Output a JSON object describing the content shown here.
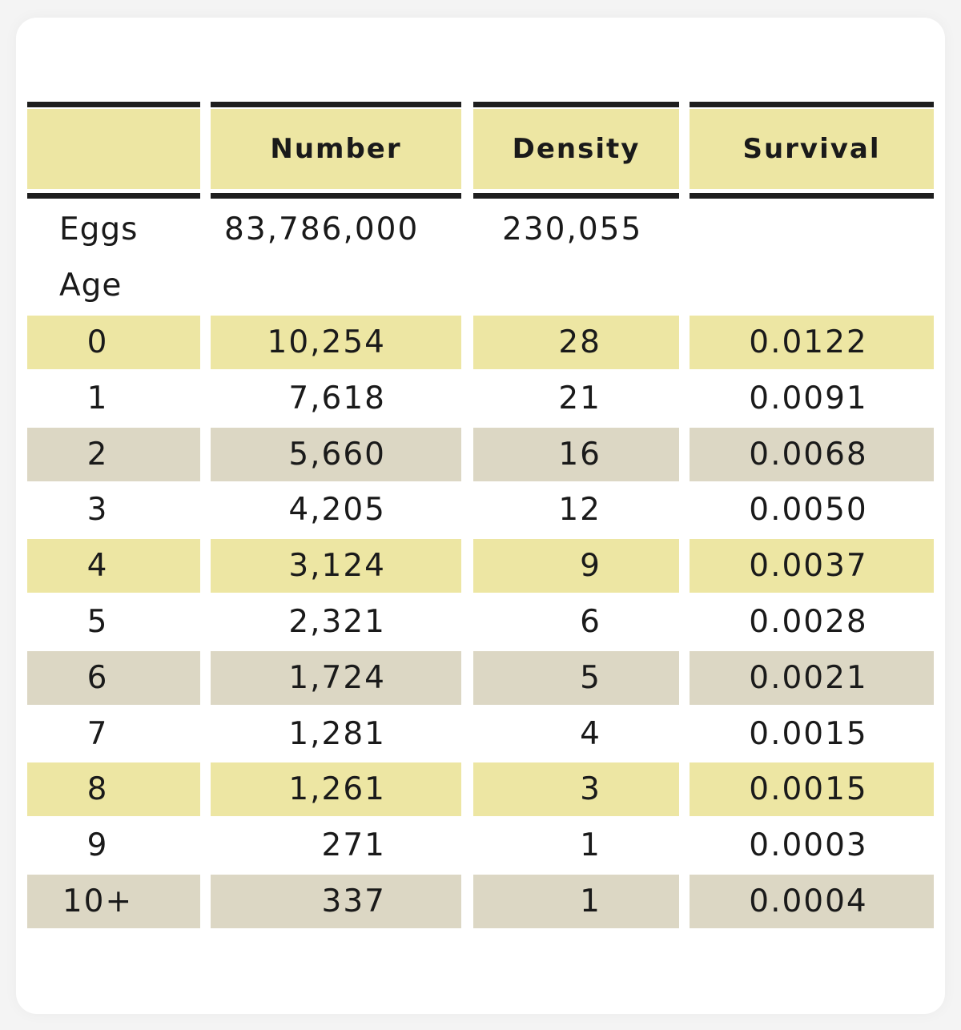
{
  "table": {
    "headers": [
      "",
      "Number",
      "Density",
      "Survival"
    ],
    "eggs": {
      "label": "Eggs",
      "number": "83,786,000",
      "density": "230,055",
      "survival": ""
    },
    "age_label": "Age",
    "rows": [
      {
        "age": "0",
        "number": "10,254",
        "density": "28",
        "survival": "0.0122",
        "shade": "yellow"
      },
      {
        "age": "1",
        "number": "7,618",
        "density": "21",
        "survival": "0.0091",
        "shade": "none"
      },
      {
        "age": "2",
        "number": "5,660",
        "density": "16",
        "survival": "0.0068",
        "shade": "gray"
      },
      {
        "age": "3",
        "number": "4,205",
        "density": "12",
        "survival": "0.0050",
        "shade": "none"
      },
      {
        "age": "4",
        "number": "3,124",
        "density": "9",
        "survival": "0.0037",
        "shade": "yellow"
      },
      {
        "age": "5",
        "number": "2,321",
        "density": "6",
        "survival": "0.0028",
        "shade": "none"
      },
      {
        "age": "6",
        "number": "1,724",
        "density": "5",
        "survival": "0.0021",
        "shade": "gray"
      },
      {
        "age": "7",
        "number": "1,281",
        "density": "4",
        "survival": "0.0015",
        "shade": "none"
      },
      {
        "age": "8",
        "number": "1,261",
        "density": "3",
        "survival": "0.0015",
        "shade": "yellow"
      },
      {
        "age": "9",
        "number": "271",
        "density": "1",
        "survival": "0.0003",
        "shade": "none"
      },
      {
        "age": "10+",
        "number": "337",
        "density": "1",
        "survival": "0.0004",
        "shade": "gray"
      }
    ]
  },
  "colors": {
    "yellow_band": "#ede6a3",
    "gray_band": "#dcd7c4",
    "rule": "#1e1e1e"
  }
}
